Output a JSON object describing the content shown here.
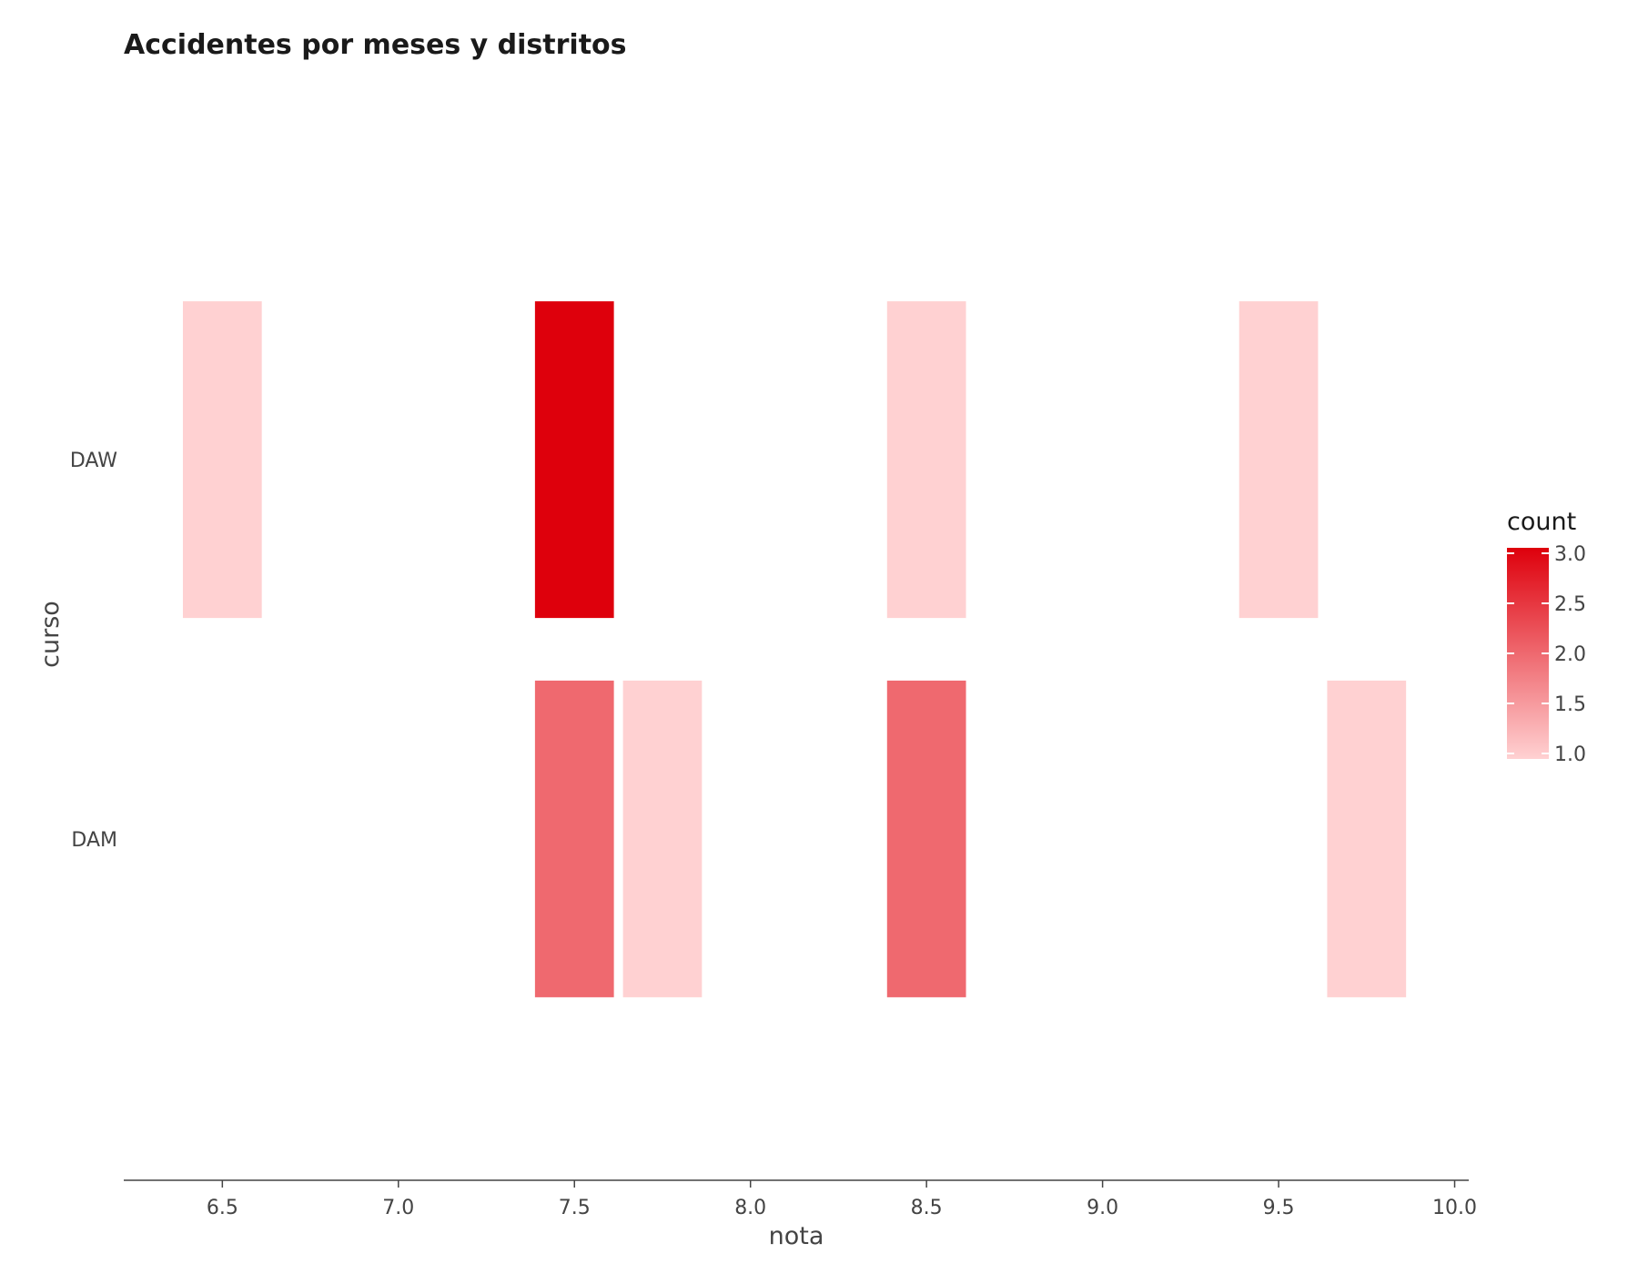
{
  "chart_data": {
    "type": "heatmap",
    "title": "Accidentes por meses y distritos",
    "xlabel": "nota",
    "ylabel": "curso",
    "x_ticks": [
      6.5,
      7.0,
      7.5,
      8.0,
      8.5,
      9.0,
      9.5,
      10.0
    ],
    "x_tick_labels": [
      "6.5",
      "7.0",
      "7.5",
      "8.0",
      "8.5",
      "9.0",
      "9.5",
      "10.0"
    ],
    "xlim": [
      6.22,
      10.04
    ],
    "bin_width": 0.25,
    "categories": [
      "DAW",
      "DAM"
    ],
    "cells": [
      {
        "curso": "DAW",
        "nota": 6.5,
        "count": 1
      },
      {
        "curso": "DAW",
        "nota": 7.5,
        "count": 3
      },
      {
        "curso": "DAW",
        "nota": 8.5,
        "count": 1
      },
      {
        "curso": "DAW",
        "nota": 9.5,
        "count": 1
      },
      {
        "curso": "DAM",
        "nota": 7.5,
        "count": 2
      },
      {
        "curso": "DAM",
        "nota": 7.75,
        "count": 1
      },
      {
        "curso": "DAM",
        "nota": 8.5,
        "count": 2
      },
      {
        "curso": "DAM",
        "nota": 9.75,
        "count": 1
      }
    ],
    "colorscale": {
      "title": "count",
      "min": 1,
      "max": 3,
      "low_color": "#ffd1d2",
      "high_color": "#de000c",
      "ticks": [
        1.0,
        1.5,
        2.0,
        2.5,
        3.0
      ],
      "tick_labels": [
        "1.0",
        "1.5",
        "2.0",
        "2.5",
        "3.0"
      ]
    },
    "grid": false,
    "legend_position": "right"
  }
}
